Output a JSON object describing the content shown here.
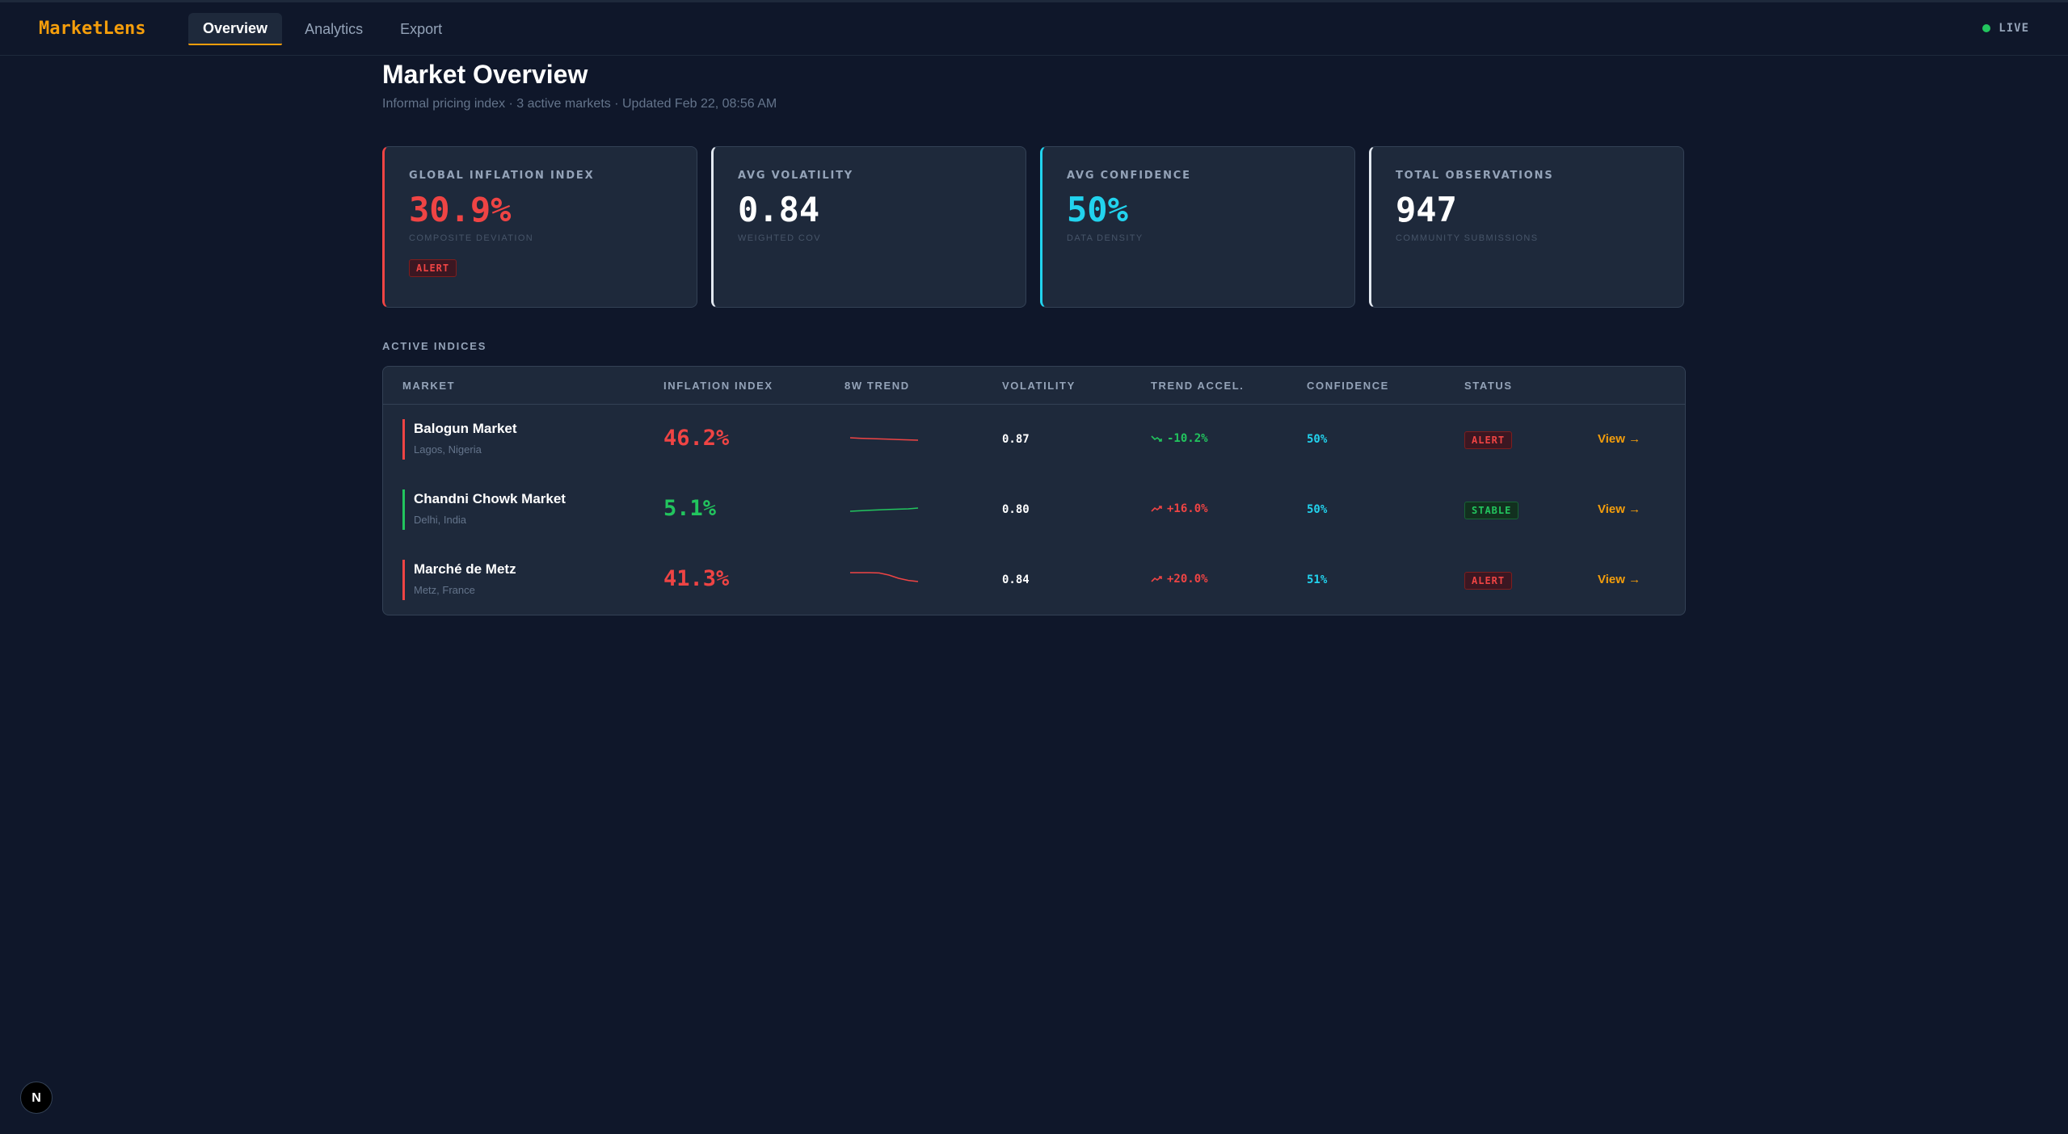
{
  "app": {
    "logo": "MarketLens",
    "live_label": "LIVE"
  },
  "nav": {
    "tabs": [
      {
        "label": "Overview",
        "active": true
      },
      {
        "label": "Analytics",
        "active": false
      },
      {
        "label": "Export",
        "active": false
      }
    ]
  },
  "header": {
    "title": "Market Overview",
    "subtitle": "Informal pricing index · 3 active markets · Updated Feb 22, 08:56 AM"
  },
  "kpis": [
    {
      "label": "GLOBAL INFLATION INDEX",
      "value": "30.9%",
      "caption": "COMPOSITE DEVIATION",
      "badge": "ALERT",
      "color": "#ef4444"
    },
    {
      "label": "AVG VOLATILITY",
      "value": "0.84",
      "caption": "WEIGHTED COV",
      "color": "#ffffff"
    },
    {
      "label": "AVG CONFIDENCE",
      "value": "50%",
      "caption": "DATA DENSITY",
      "color": "#22d3ee"
    },
    {
      "label": "TOTAL OBSERVATIONS",
      "value": "947",
      "caption": "COMMUNITY SUBMISSIONS",
      "color": "#ffffff"
    }
  ],
  "indices": {
    "section_label": "ACTIVE INDICES",
    "columns": [
      "MARKET",
      "INFLATION INDEX",
      "8W TREND",
      "VOLATILITY",
      "TREND ACCEL.",
      "CONFIDENCE",
      "STATUS"
    ],
    "rows": [
      {
        "name": "Balogun Market",
        "location": "Lagos, Nigeria",
        "index": "46.2%",
        "volatility": "0.87",
        "accel": "-10.2%",
        "accel_dir": "down",
        "confidence": "50%",
        "status": "ALERT",
        "view": "View →",
        "color": "#ef4444",
        "accel_color": "#22c55e",
        "trend": [
          0.55,
          0.52,
          0.5,
          0.48,
          0.46,
          0.44,
          0.42,
          0.4
        ]
      },
      {
        "name": "Chandni Chowk Market",
        "location": "Delhi, India",
        "index": "5.1%",
        "volatility": "0.80",
        "accel": "+16.0%",
        "accel_dir": "up",
        "confidence": "50%",
        "status": "STABLE",
        "view": "View →",
        "color": "#22c55e",
        "accel_color": "#ef4444",
        "trend": [
          0.35,
          0.38,
          0.41,
          0.44,
          0.46,
          0.48,
          0.5,
          0.55
        ]
      },
      {
        "name": "Marché de Metz",
        "location": "Metz, France",
        "index": "41.3%",
        "volatility": "0.84",
        "accel": "+20.0%",
        "accel_dir": "up",
        "confidence": "51%",
        "status": "ALERT",
        "view": "View →",
        "color": "#ef4444",
        "accel_color": "#ef4444",
        "trend": [
          0.9,
          0.9,
          0.9,
          0.88,
          0.75,
          0.55,
          0.42,
          0.35
        ]
      }
    ]
  },
  "footer": {
    "badge": "N"
  }
}
